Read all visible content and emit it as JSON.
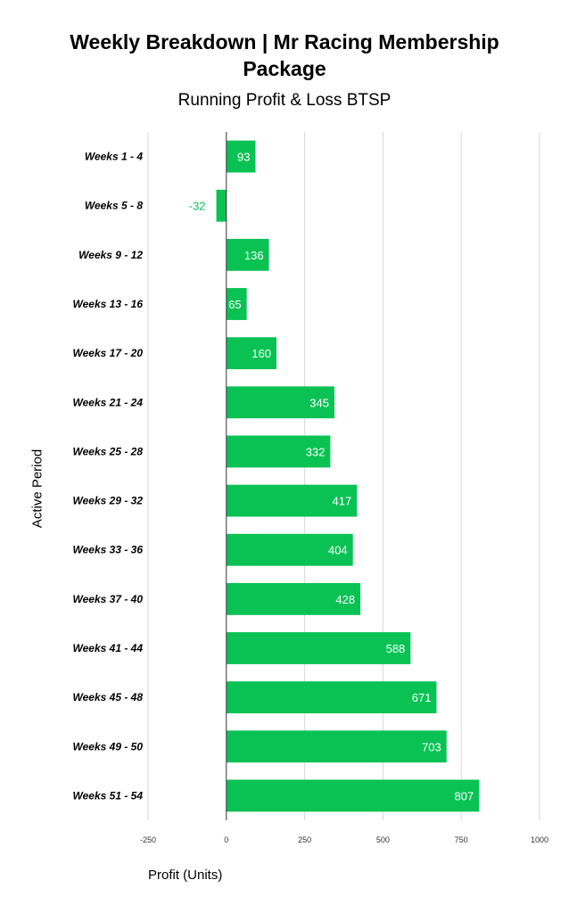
{
  "chart_data": {
    "type": "bar",
    "orientation": "horizontal",
    "title": "Weekly Breakdown | Mr Racing Membership Package",
    "subtitle": "Running Profit & Loss BTSP",
    "xlabel": "Profit (Units)",
    "ylabel": "Active Period",
    "xlim": [
      -250,
      1000
    ],
    "xticks": [
      -250,
      0,
      250,
      500,
      750,
      1000
    ],
    "xtick_labels": [
      "-250",
      "0",
      "250",
      "500",
      "750",
      "1000"
    ],
    "grid": true,
    "legend": "none",
    "categories": [
      "Weeks 1 - 4",
      "Weeks 5 - 8",
      "Weeks 9 - 12",
      "Weeks 13 - 16",
      "Weeks 17 - 20",
      "Weeks 21 - 24",
      "Weeks 25 - 28",
      "Weeks 29 - 32",
      "Weeks 33 - 36",
      "Weeks 37 - 40",
      "Weeks 41 - 44",
      "Weeks 45 - 48",
      "Weeks 49 - 50",
      "Weeks 51 - 54"
    ],
    "values": [
      93,
      -32,
      136,
      65,
      160,
      345,
      332,
      417,
      404,
      428,
      588,
      671,
      703,
      807
    ],
    "value_labels": [
      "93",
      "-32",
      "136",
      "65",
      "160",
      "345",
      "332",
      "417",
      "404",
      "428",
      "588",
      "671",
      "703",
      "807"
    ],
    "colors": {
      "bar": "#0ac254",
      "label_inside": "#ffffff",
      "label_outside": "#0ac254",
      "grid": "#d9d9d9",
      "zero_line": "#333333"
    }
  }
}
